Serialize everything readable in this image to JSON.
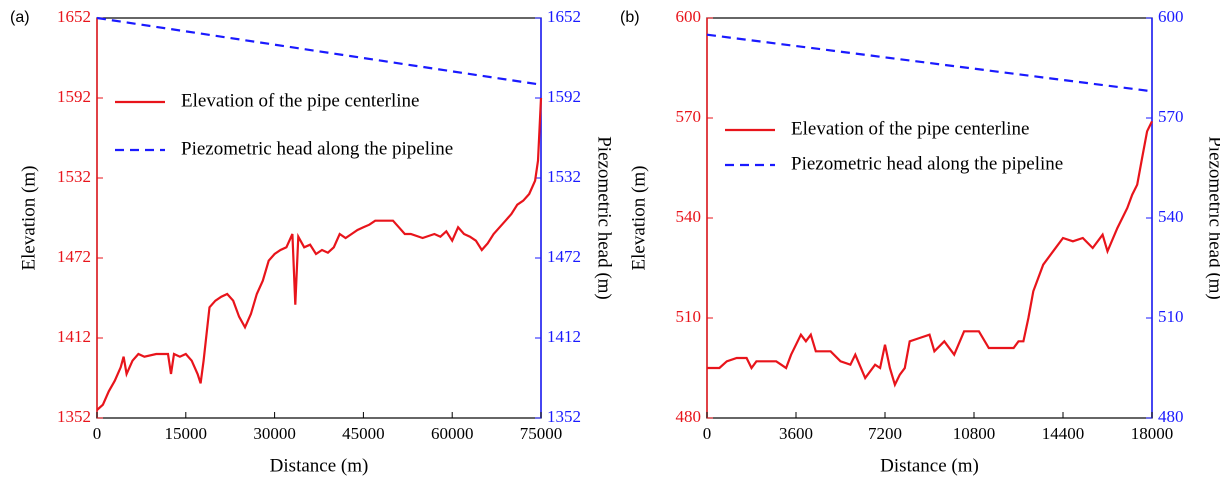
{
  "chart_data": [
    {
      "type": "line",
      "panel_label": "(a)",
      "x_label": "Distance (m)",
      "y_label": "Elevation (m)",
      "y2_label": "Piezometric head (m)",
      "xlim": [
        0,
        75000
      ],
      "xticks": [
        0,
        15000,
        30000,
        45000,
        60000,
        75000
      ],
      "ylim": [
        1352,
        1652
      ],
      "yticks": [
        1352,
        1412,
        1472,
        1532,
        1592,
        1652
      ],
      "y2lim": [
        1352,
        1652
      ],
      "y2ticks": [
        1352,
        1412,
        1472,
        1532,
        1592,
        1652
      ],
      "y_color": "#e8141b",
      "y2_color": "#1a1aff",
      "legend": "upper left",
      "series": [
        {
          "name": "Elevation of the pipe centerline",
          "color": "#e8141b",
          "linestyle": "solid",
          "x": [
            0,
            1000,
            2000,
            3000,
            4000,
            4500,
            5000,
            6000,
            7000,
            8000,
            10000,
            12000,
            12500,
            13000,
            14000,
            15000,
            16000,
            17000,
            17500,
            18000,
            19000,
            20000,
            21000,
            22000,
            23000,
            24000,
            25000,
            26000,
            27000,
            28000,
            29000,
            30000,
            31000,
            32000,
            33000,
            33500,
            34000,
            35000,
            36000,
            37000,
            38000,
            39000,
            40000,
            41000,
            42000,
            43000,
            44000,
            45000,
            46000,
            47000,
            48000,
            50000,
            51000,
            52000,
            53000,
            55000,
            57000,
            58000,
            59000,
            60000,
            61000,
            62000,
            63000,
            64000,
            65000,
            66000,
            67000,
            68000,
            69000,
            70000,
            71000,
            72000,
            73000,
            74000,
            74500,
            75000
          ],
          "values": [
            1358,
            1362,
            1372,
            1380,
            1390,
            1398,
            1385,
            1395,
            1400,
            1398,
            1400,
            1400,
            1385,
            1400,
            1398,
            1400,
            1395,
            1385,
            1378,
            1395,
            1435,
            1440,
            1443,
            1445,
            1440,
            1428,
            1420,
            1430,
            1445,
            1455,
            1470,
            1475,
            1478,
            1480,
            1490,
            1437,
            1488,
            1480,
            1482,
            1475,
            1478,
            1476,
            1480,
            1490,
            1487,
            1490,
            1493,
            1495,
            1497,
            1500,
            1500,
            1500,
            1495,
            1490,
            1490,
            1487,
            1490,
            1488,
            1492,
            1485,
            1495,
            1490,
            1488,
            1485,
            1478,
            1483,
            1490,
            1495,
            1500,
            1505,
            1512,
            1515,
            1520,
            1530,
            1545,
            1592
          ]
        },
        {
          "name": "Piezometric head along the pipeline",
          "color": "#1a1aff",
          "linestyle": "dashed",
          "axis": "y2",
          "x": [
            0,
            75000
          ],
          "values": [
            1652,
            1602
          ]
        }
      ]
    },
    {
      "type": "line",
      "panel_label": "(b)",
      "x_label": "Distance (m)",
      "y_label": "Elevation (m)",
      "y2_label": "Piezometric head (m)",
      "xlim": [
        0,
        18000
      ],
      "xticks": [
        0,
        3600,
        7200,
        10800,
        14400,
        18000
      ],
      "ylim": [
        480,
        600
      ],
      "yticks": [
        480,
        510,
        540,
        570,
        600
      ],
      "y2lim": [
        480,
        600
      ],
      "y2ticks": [
        480,
        510,
        540,
        570,
        600
      ],
      "y_color": "#e8141b",
      "y2_color": "#1a1aff",
      "legend": "upper left",
      "series": [
        {
          "name": "Elevation of the pipe centerline",
          "color": "#e8141b",
          "linestyle": "solid",
          "x": [
            0,
            500,
            800,
            1200,
            1600,
            1800,
            2000,
            2800,
            3000,
            3200,
            3400,
            3800,
            4000,
            4200,
            4400,
            5000,
            5400,
            5800,
            6000,
            6400,
            6800,
            7000,
            7200,
            7400,
            7600,
            7800,
            8000,
            8200,
            8600,
            9000,
            9200,
            9600,
            10000,
            10400,
            11000,
            11400,
            12400,
            12600,
            12800,
            13000,
            13200,
            13600,
            14000,
            14400,
            14800,
            15200,
            15600,
            16000,
            16200,
            16600,
            17000,
            17200,
            17400,
            17600,
            17800,
            18000
          ],
          "values": [
            495,
            495,
            497,
            498,
            498,
            495,
            497,
            497,
            496,
            495,
            499,
            505,
            503,
            505,
            500,
            500,
            497,
            496,
            499,
            492,
            496,
            495,
            502,
            495,
            490,
            493,
            495,
            503,
            504,
            505,
            500,
            503,
            499,
            506,
            506,
            501,
            501,
            503,
            503,
            510,
            518,
            526,
            530,
            534,
            533,
            534,
            531,
            535,
            530,
            537,
            543,
            547,
            550,
            558,
            566,
            569
          ]
        },
        {
          "name": "Piezometric head along the pipeline",
          "color": "#1a1aff",
          "linestyle": "dashed",
          "axis": "y2",
          "x": [
            0,
            18000
          ],
          "values": [
            595,
            578
          ]
        }
      ]
    }
  ]
}
